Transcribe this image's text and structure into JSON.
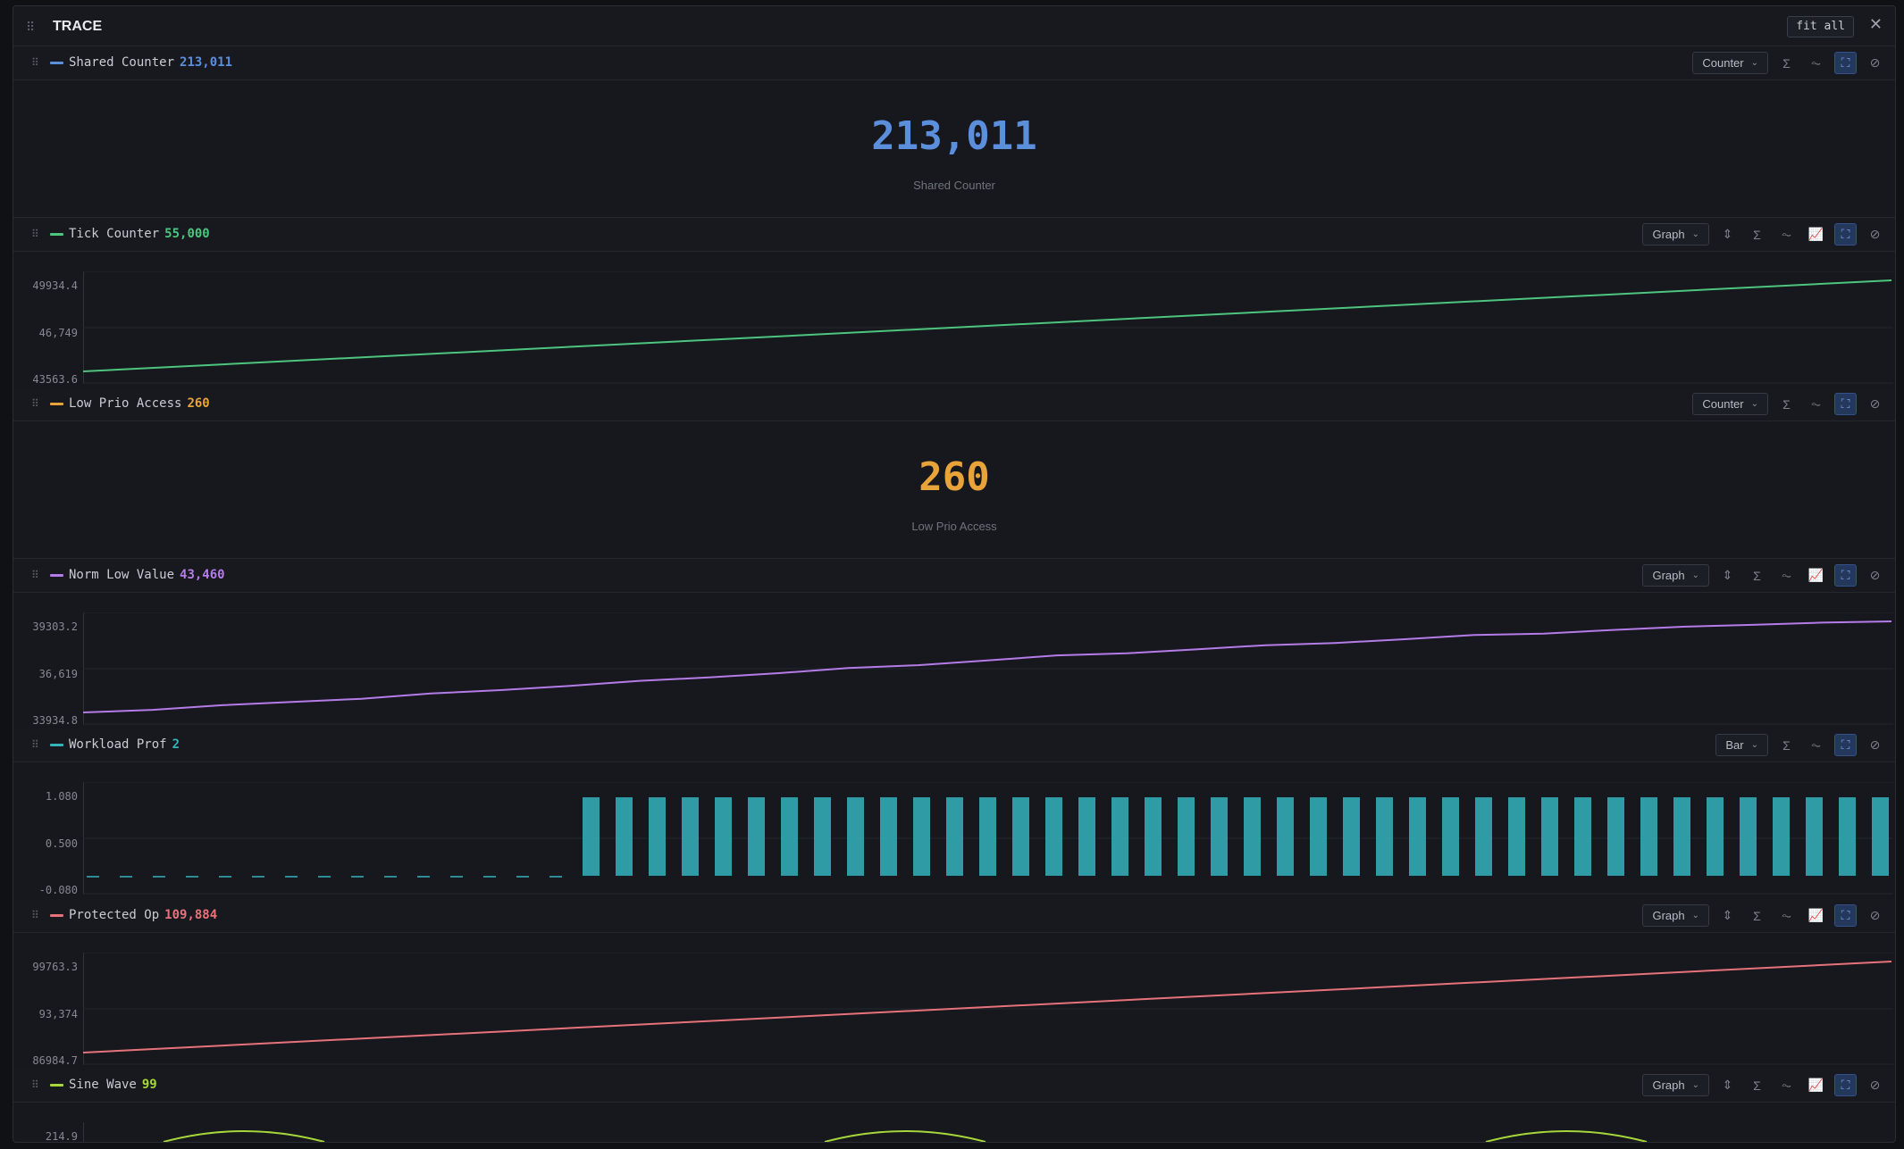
{
  "panel": {
    "title": "TRACE",
    "fit_label": "fit all"
  },
  "icons": {
    "grip": "⠿",
    "close": "✕",
    "chevron": "⌄",
    "fit_y": "⇕",
    "sum": "Σ",
    "wave": "⏦",
    "area_chart": "📈",
    "fullscreen": "⛶",
    "hide": "⊘"
  },
  "tracks": [
    {
      "id": "shared",
      "name": "Shared Counter",
      "value": "213,011",
      "color": "#5b8fdc",
      "mode": "Counter",
      "big_value": "213,011",
      "big_label": "Shared Counter"
    },
    {
      "id": "tick",
      "name": "Tick Counter",
      "value": "55,000",
      "color": "#4cc57e",
      "mode": "Graph",
      "y_ticks": [
        "49934.4",
        "46,749",
        "43563.6"
      ]
    },
    {
      "id": "lowprio",
      "name": "Low Prio Access",
      "value": "260",
      "color": "#e8a33a",
      "mode": "Counter",
      "big_value": "260",
      "big_label": "Low Prio Access"
    },
    {
      "id": "normlow",
      "name": "Norm Low Value",
      "value": "43,460",
      "color": "#b57be8",
      "mode": "Graph",
      "y_ticks": [
        "39303.2",
        "36,619",
        "33934.8"
      ]
    },
    {
      "id": "workload",
      "name": "Workload Prof",
      "value": "2",
      "color": "#34b3bd",
      "mode": "Bar",
      "y_ticks": [
        "1.080",
        "0.500",
        "-0.080"
      ]
    },
    {
      "id": "protected",
      "name": "Protected Op",
      "value": "109,884",
      "color": "#e8727a",
      "mode": "Graph",
      "y_ticks": [
        "99763.3",
        "93,374",
        "86984.7"
      ]
    },
    {
      "id": "sine",
      "name": "Sine Wave",
      "value": "99",
      "color": "#a6d63a",
      "mode": "Graph",
      "y_ticks": [
        "214.9"
      ]
    }
  ],
  "chart_data": [
    {
      "type": "line",
      "title": "Tick Counter",
      "x": [
        0,
        1
      ],
      "y": [
        43563.6,
        49934.4
      ],
      "ylim": [
        43563.6,
        49934.4
      ]
    },
    {
      "type": "line",
      "title": "Norm Low Value",
      "x": [
        0,
        1,
        2,
        3,
        4,
        5,
        6,
        7,
        8,
        9,
        10,
        11,
        12,
        13,
        14,
        15,
        16,
        17,
        18,
        19,
        20,
        21,
        22,
        23,
        24,
        25,
        26
      ],
      "y": [
        33934.8,
        34090,
        34360,
        34550,
        34740,
        35050,
        35250,
        35500,
        35800,
        36000,
        36250,
        36550,
        36720,
        37000,
        37300,
        37420,
        37650,
        37900,
        38030,
        38250,
        38500,
        38580,
        38800,
        38990,
        39100,
        39230,
        39303.2
      ],
      "ylim": [
        33934.8,
        39303.2
      ]
    },
    {
      "type": "bar",
      "title": "Workload Prof",
      "values": [
        0,
        0,
        0,
        0,
        0,
        0,
        0,
        0,
        0,
        0,
        0,
        0,
        0,
        0,
        0,
        1,
        1,
        1,
        1,
        1,
        1,
        1,
        1,
        1,
        1,
        1,
        1,
        1,
        1,
        1,
        1,
        1,
        1,
        1,
        1,
        1,
        1,
        1,
        1,
        1,
        1,
        1,
        1,
        1,
        1,
        1,
        1,
        1,
        1,
        1,
        1,
        1,
        1,
        1,
        1,
        1
      ],
      "ylim": [
        -0.08,
        1.08
      ]
    },
    {
      "type": "line",
      "title": "Protected Op",
      "x": [
        0,
        1
      ],
      "y": [
        86984.7,
        99763.3
      ],
      "ylim": [
        86984.7,
        99763.3
      ]
    }
  ]
}
